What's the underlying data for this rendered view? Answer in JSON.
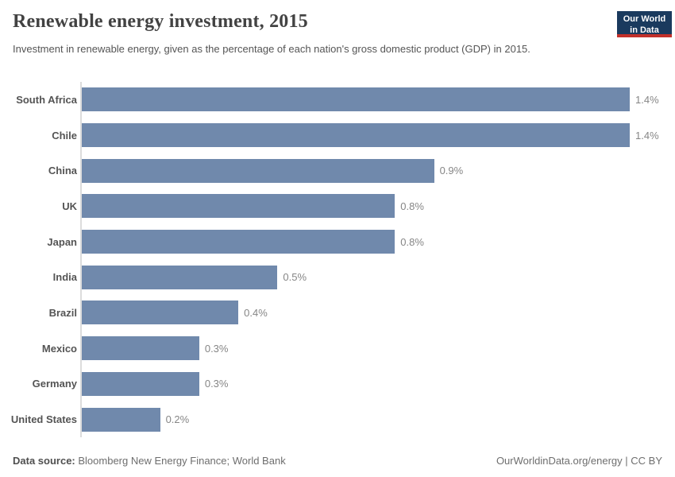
{
  "header": {
    "title": "Renewable energy investment, 2015",
    "subtitle": "Investment in renewable energy, given as the percentage of each nation's gross domestic product (GDP) in 2015.",
    "logo_line1": "Our World",
    "logo_line2": "in Data"
  },
  "chart_data": {
    "type": "bar",
    "orientation": "horizontal",
    "title": "Renewable energy investment, 2015",
    "unit": "%",
    "categories": [
      "South Africa",
      "Chile",
      "China",
      "UK",
      "Japan",
      "India",
      "Brazil",
      "Mexico",
      "Germany",
      "United States"
    ],
    "values": [
      1.4,
      1.4,
      0.9,
      0.8,
      0.8,
      0.5,
      0.4,
      0.3,
      0.3,
      0.2
    ],
    "value_labels": [
      "1.4%",
      "1.4%",
      "0.9%",
      "0.8%",
      "0.8%",
      "0.5%",
      "0.4%",
      "0.3%",
      "0.3%",
      "0.2%"
    ],
    "xlim": [
      0,
      1.4
    ],
    "grid": false,
    "legend": "none",
    "bar_color": "#7089ac"
  },
  "footer": {
    "source_label": "Data source:",
    "source_text": " Bloomberg New Energy Finance; World Bank",
    "credit": "OurWorldinData.org/energy | CC BY"
  },
  "colors": {
    "bar": "#7089ac",
    "logo_navy": "#1a3a5e",
    "logo_red": "#c2302a",
    "axis": "#dcdcdc"
  }
}
